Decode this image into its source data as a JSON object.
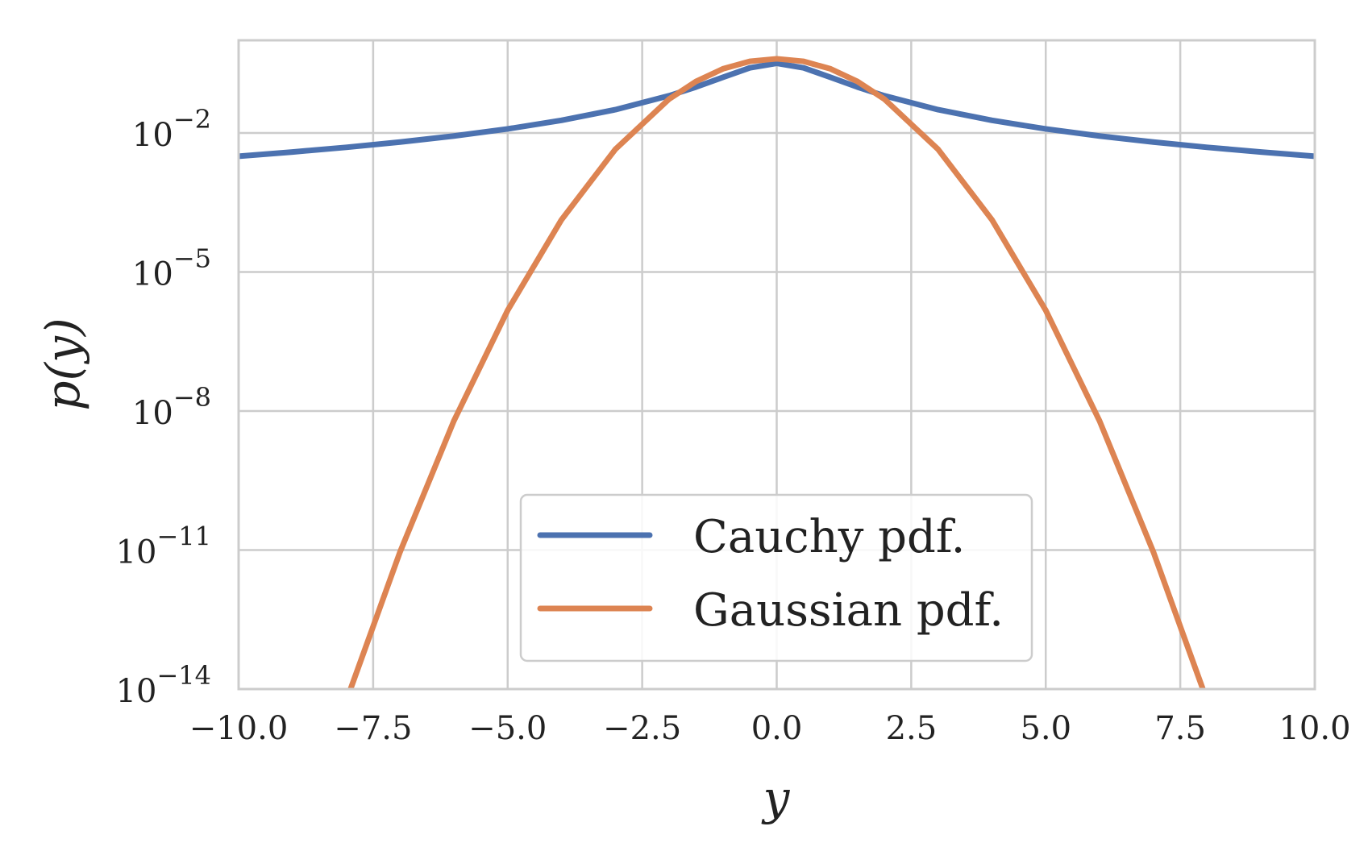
{
  "chart_data": {
    "type": "line",
    "title": "",
    "xlabel": "y",
    "ylabel": "p(y)",
    "x_range": [
      -10,
      10
    ],
    "y_scale": "log",
    "y_range": [
      1e-14,
      1
    ],
    "grid": true,
    "legend_position": "lower center",
    "x_ticks": [
      {
        "value": -10.0,
        "label": "−10.0"
      },
      {
        "value": -7.5,
        "label": "−7.5"
      },
      {
        "value": -5.0,
        "label": "−5.0"
      },
      {
        "value": -2.5,
        "label": "−2.5"
      },
      {
        "value": 0.0,
        "label": "0.0"
      },
      {
        "value": 2.5,
        "label": "2.5"
      },
      {
        "value": 5.0,
        "label": "5.0"
      },
      {
        "value": 7.5,
        "label": "7.5"
      },
      {
        "value": 10.0,
        "label": "10.0"
      }
    ],
    "y_ticks": [
      {
        "exponent": -2,
        "base": "10",
        "sup": "−2"
      },
      {
        "exponent": -5,
        "base": "10",
        "sup": "−5"
      },
      {
        "exponent": -8,
        "base": "10",
        "sup": "−8"
      },
      {
        "exponent": -11,
        "base": "10",
        "sup": "−11"
      },
      {
        "exponent": -14,
        "base": "10",
        "sup": "−14"
      }
    ],
    "series": [
      {
        "name": "Cauchy pdf.",
        "color": "#4C72B0",
        "x": [
          -10,
          -9,
          -8,
          -7,
          -6,
          -5,
          -4,
          -3,
          -2,
          -1.5,
          -1,
          -0.5,
          0,
          0.5,
          1,
          1.5,
          2,
          3,
          4,
          5,
          6,
          7,
          8,
          9,
          10
        ],
        "y": [
          0.00315,
          0.00389,
          0.0049,
          0.00637,
          0.0086,
          0.01224,
          0.01872,
          0.03183,
          0.06366,
          0.09794,
          0.15915,
          0.25465,
          0.31831,
          0.25465,
          0.15915,
          0.09794,
          0.06366,
          0.03183,
          0.01872,
          0.01224,
          0.0086,
          0.00637,
          0.0049,
          0.00389,
          0.00315
        ]
      },
      {
        "name": "Gaussian pdf.",
        "color": "#DD8452",
        "x": [
          -7.92,
          -7,
          -6,
          -5,
          -4,
          -3,
          -2,
          -1.5,
          -1,
          -0.5,
          0,
          0.5,
          1,
          1.5,
          2,
          3,
          4,
          5,
          6,
          7,
          7.92
        ],
        "y": [
          1e-14,
          9.1e-12,
          6.1e-09,
          1.49e-06,
          0.000134,
          0.00443,
          0.05399,
          0.12952,
          0.24197,
          0.35207,
          0.39894,
          0.35207,
          0.24197,
          0.12952,
          0.05399,
          0.00443,
          0.000134,
          1.49e-06,
          6.1e-09,
          9.1e-12,
          1e-14
        ]
      }
    ]
  }
}
